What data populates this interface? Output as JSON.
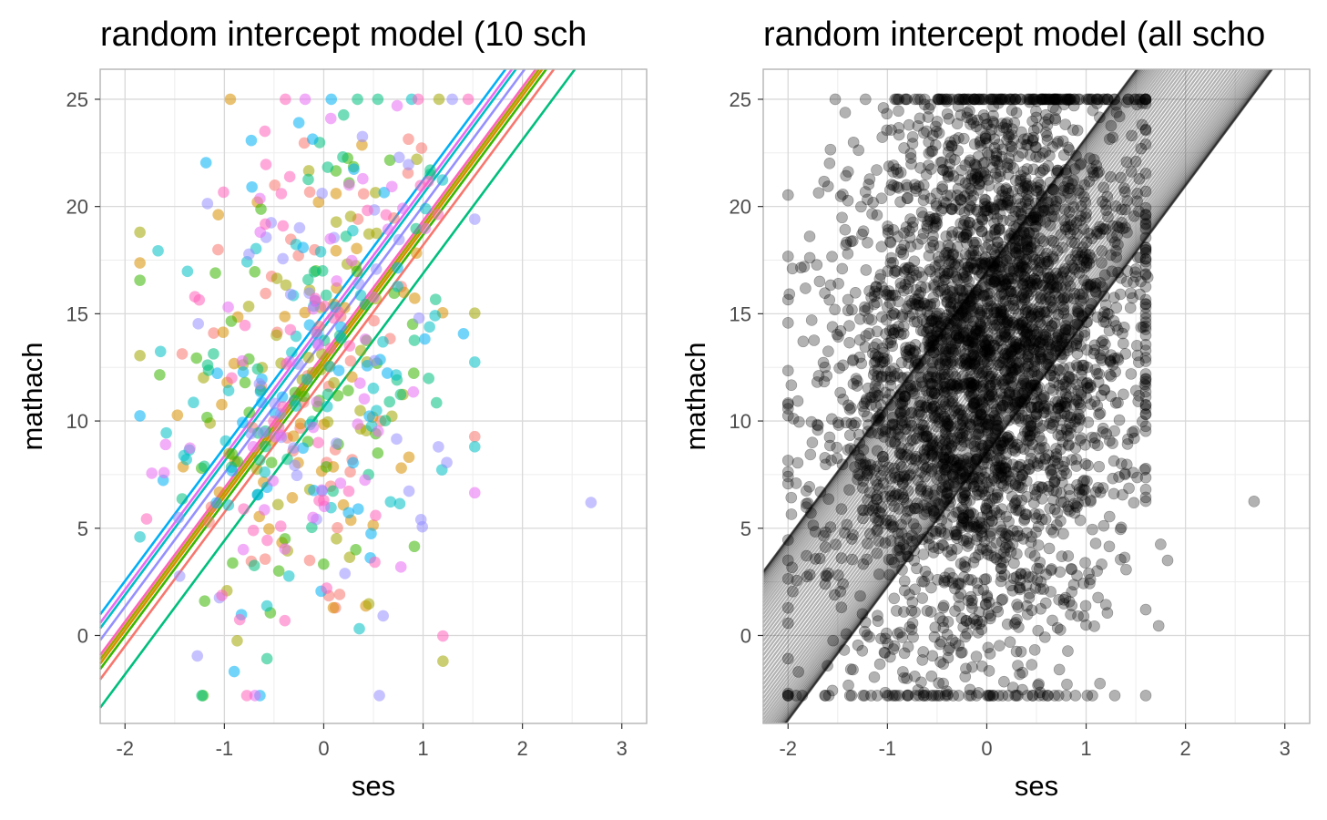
{
  "colors": {
    "panel_border": "#b3b3b3",
    "grid_major": "#d9d9d9",
    "grid_minor": "#ededed",
    "tick_text": "#4d4d4d",
    "school_palette": [
      "#F8766D",
      "#D89000",
      "#A3A500",
      "#39B600",
      "#00BF7D",
      "#00BFC4",
      "#00B0F6",
      "#9590FF",
      "#E76BF3",
      "#FF62BC"
    ]
  },
  "chart_data": [
    {
      "type": "scatter",
      "title": "random intercept model (10 sch",
      "xlabel": "ses",
      "ylabel": "mathach",
      "xlim": [
        -2.25,
        3.25
      ],
      "ylim": [
        -4.1,
        26.4
      ],
      "x_ticks": [
        -2,
        -1,
        0,
        1,
        2,
        3
      ],
      "y_ticks": [
        0,
        5,
        10,
        15,
        20,
        25
      ],
      "x_tick_labels": [
        "-2",
        "-1",
        "0",
        "1",
        "2",
        "3"
      ],
      "y_tick_labels": [
        "0",
        "5",
        "10",
        "15",
        "20",
        "25"
      ],
      "grid": true,
      "legend": "none",
      "point_alpha": 0.55,
      "n_points_per_school": 48,
      "slope": 6.23,
      "intercepts": [
        11.97,
        12.7,
        12.9,
        12.45,
        10.65,
        14.35,
        15.0,
        13.8,
        14.6,
        13.1
      ],
      "line_colors": [
        "#F8766D",
        "#D89000",
        "#A3A500",
        "#39B600",
        "#00BF7D",
        "#00BFC4",
        "#00B0F6",
        "#9590FF",
        "#E76BF3",
        "#FF62BC"
      ],
      "sample_points": [
        {
          "x": -1.85,
          "y": 18.8
        },
        {
          "x": 1.16,
          "y": 25.0
        },
        {
          "x": -0.94,
          "y": 25.0
        },
        {
          "x": 1.52,
          "y": 8.8
        },
        {
          "x": 1.2,
          "y": -1.2
        },
        {
          "x": 2.69,
          "y": 6.2
        }
      ]
    },
    {
      "type": "scatter",
      "title": "random intercept model (all scho",
      "xlabel": "ses",
      "ylabel": "mathach",
      "xlim": [
        -2.25,
        3.25
      ],
      "ylim": [
        -4.1,
        26.4
      ],
      "x_ticks": [
        -2,
        -1,
        0,
        1,
        2,
        3
      ],
      "y_ticks": [
        0,
        5,
        10,
        15,
        20,
        25
      ],
      "x_tick_labels": [
        "-2",
        "-1",
        "0",
        "1",
        "2",
        "3"
      ],
      "y_tick_labels": [
        "0",
        "5",
        "10",
        "15",
        "20",
        "25"
      ],
      "grid": true,
      "legend": "none",
      "point_color": "#000000",
      "point_alpha": 0.3,
      "line_color": "#000000",
      "line_alpha": 0.3,
      "n_points": 3600,
      "n_lines": 60,
      "slope": 6.23,
      "intercept_range": [
        8.5,
        17.0
      ],
      "ses_range": [
        -2.0,
        1.6
      ],
      "mathach_range": [
        -2.8,
        25.0
      ],
      "outliers": [
        {
          "x": 2.69,
          "y": 6.25
        },
        {
          "x": 1.75,
          "y": 4.25
        },
        {
          "x": 1.82,
          "y": 3.5
        },
        {
          "x": 1.73,
          "y": 0.45
        },
        {
          "x": 1.55,
          "y": 16.5
        },
        {
          "x": 1.62,
          "y": 16.7
        }
      ]
    }
  ]
}
